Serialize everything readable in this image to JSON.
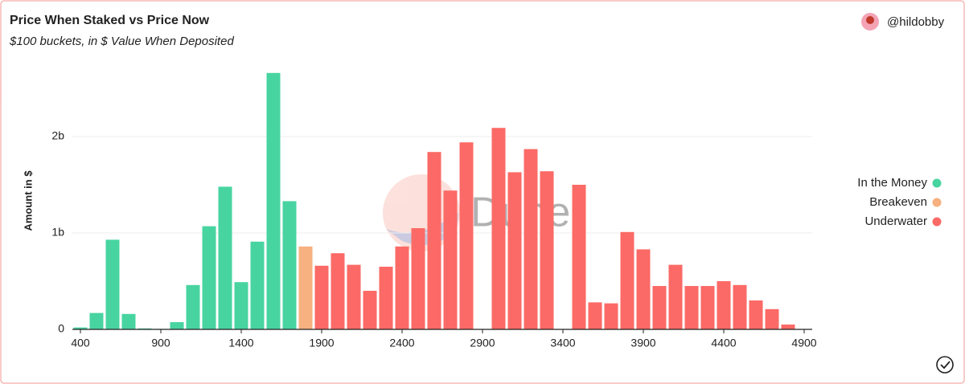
{
  "author": "@hildobby",
  "watermark": "Dune",
  "chart_data": {
    "type": "bar",
    "title": "Price When Staked vs Price Now",
    "subtitle": "$100 buckets, in $ Value When Deposited",
    "y_label": "Amount in $",
    "x": [
      400,
      500,
      600,
      700,
      800,
      900,
      1000,
      1100,
      1200,
      1300,
      1400,
      1500,
      1600,
      1700,
      1800,
      1900,
      2000,
      2100,
      2200,
      2300,
      2400,
      2500,
      2600,
      2700,
      2800,
      2900,
      3000,
      3100,
      3200,
      3300,
      3400,
      3500,
      3600,
      3700,
      3800,
      3900,
      4000,
      4100,
      4200,
      4300,
      4400,
      4500,
      4600,
      4700,
      4800
    ],
    "series": [
      {
        "name": "In the Money",
        "color": "#48d4a0",
        "values": [
          20000000,
          170000000,
          930000000,
          160000000,
          10000000,
          5000000,
          75000000,
          460000000,
          1070000000,
          1480000000,
          490000000,
          910000000,
          2660000000,
          1330000000,
          null,
          null,
          null,
          null,
          null,
          null,
          null,
          null,
          null,
          null,
          null,
          null,
          null,
          null,
          null,
          null,
          null,
          null,
          null,
          null,
          null,
          null,
          null,
          null,
          null,
          null,
          null,
          null,
          null,
          null,
          null
        ]
      },
      {
        "name": "Breakeven",
        "color": "#f7b07f",
        "values": [
          null,
          null,
          null,
          null,
          null,
          null,
          null,
          null,
          null,
          null,
          null,
          null,
          null,
          null,
          860000000,
          null,
          null,
          null,
          null,
          null,
          null,
          null,
          null,
          null,
          null,
          null,
          null,
          null,
          null,
          null,
          null,
          null,
          null,
          null,
          null,
          null,
          null,
          null,
          null,
          null,
          null,
          null,
          null,
          null,
          null
        ]
      },
      {
        "name": "Underwater",
        "color": "#fb6a66",
        "values": [
          null,
          null,
          null,
          null,
          null,
          null,
          null,
          null,
          null,
          null,
          null,
          null,
          null,
          null,
          null,
          660000000,
          790000000,
          670000000,
          400000000,
          650000000,
          860000000,
          1050000000,
          1840000000,
          1440000000,
          1940000000,
          0,
          2090000000,
          1630000000,
          1870000000,
          1640000000,
          0,
          1500000000,
          280000000,
          270000000,
          1010000000,
          830000000,
          450000000,
          670000000,
          450000000,
          450000000,
          500000000,
          460000000,
          300000000,
          210000000,
          50000000
        ]
      }
    ],
    "xlim": [
      350,
      4950
    ],
    "xticks": [
      400,
      900,
      1400,
      1900,
      2400,
      2900,
      3400,
      3900,
      4400,
      4900
    ],
    "ylim": [
      0,
      2750000000
    ],
    "yticks": [
      0,
      {
        "value": 1000000000,
        "label": "1b"
      },
      {
        "value": 2000000000,
        "label": "2b"
      }
    ],
    "grid": true,
    "legend": "right"
  }
}
